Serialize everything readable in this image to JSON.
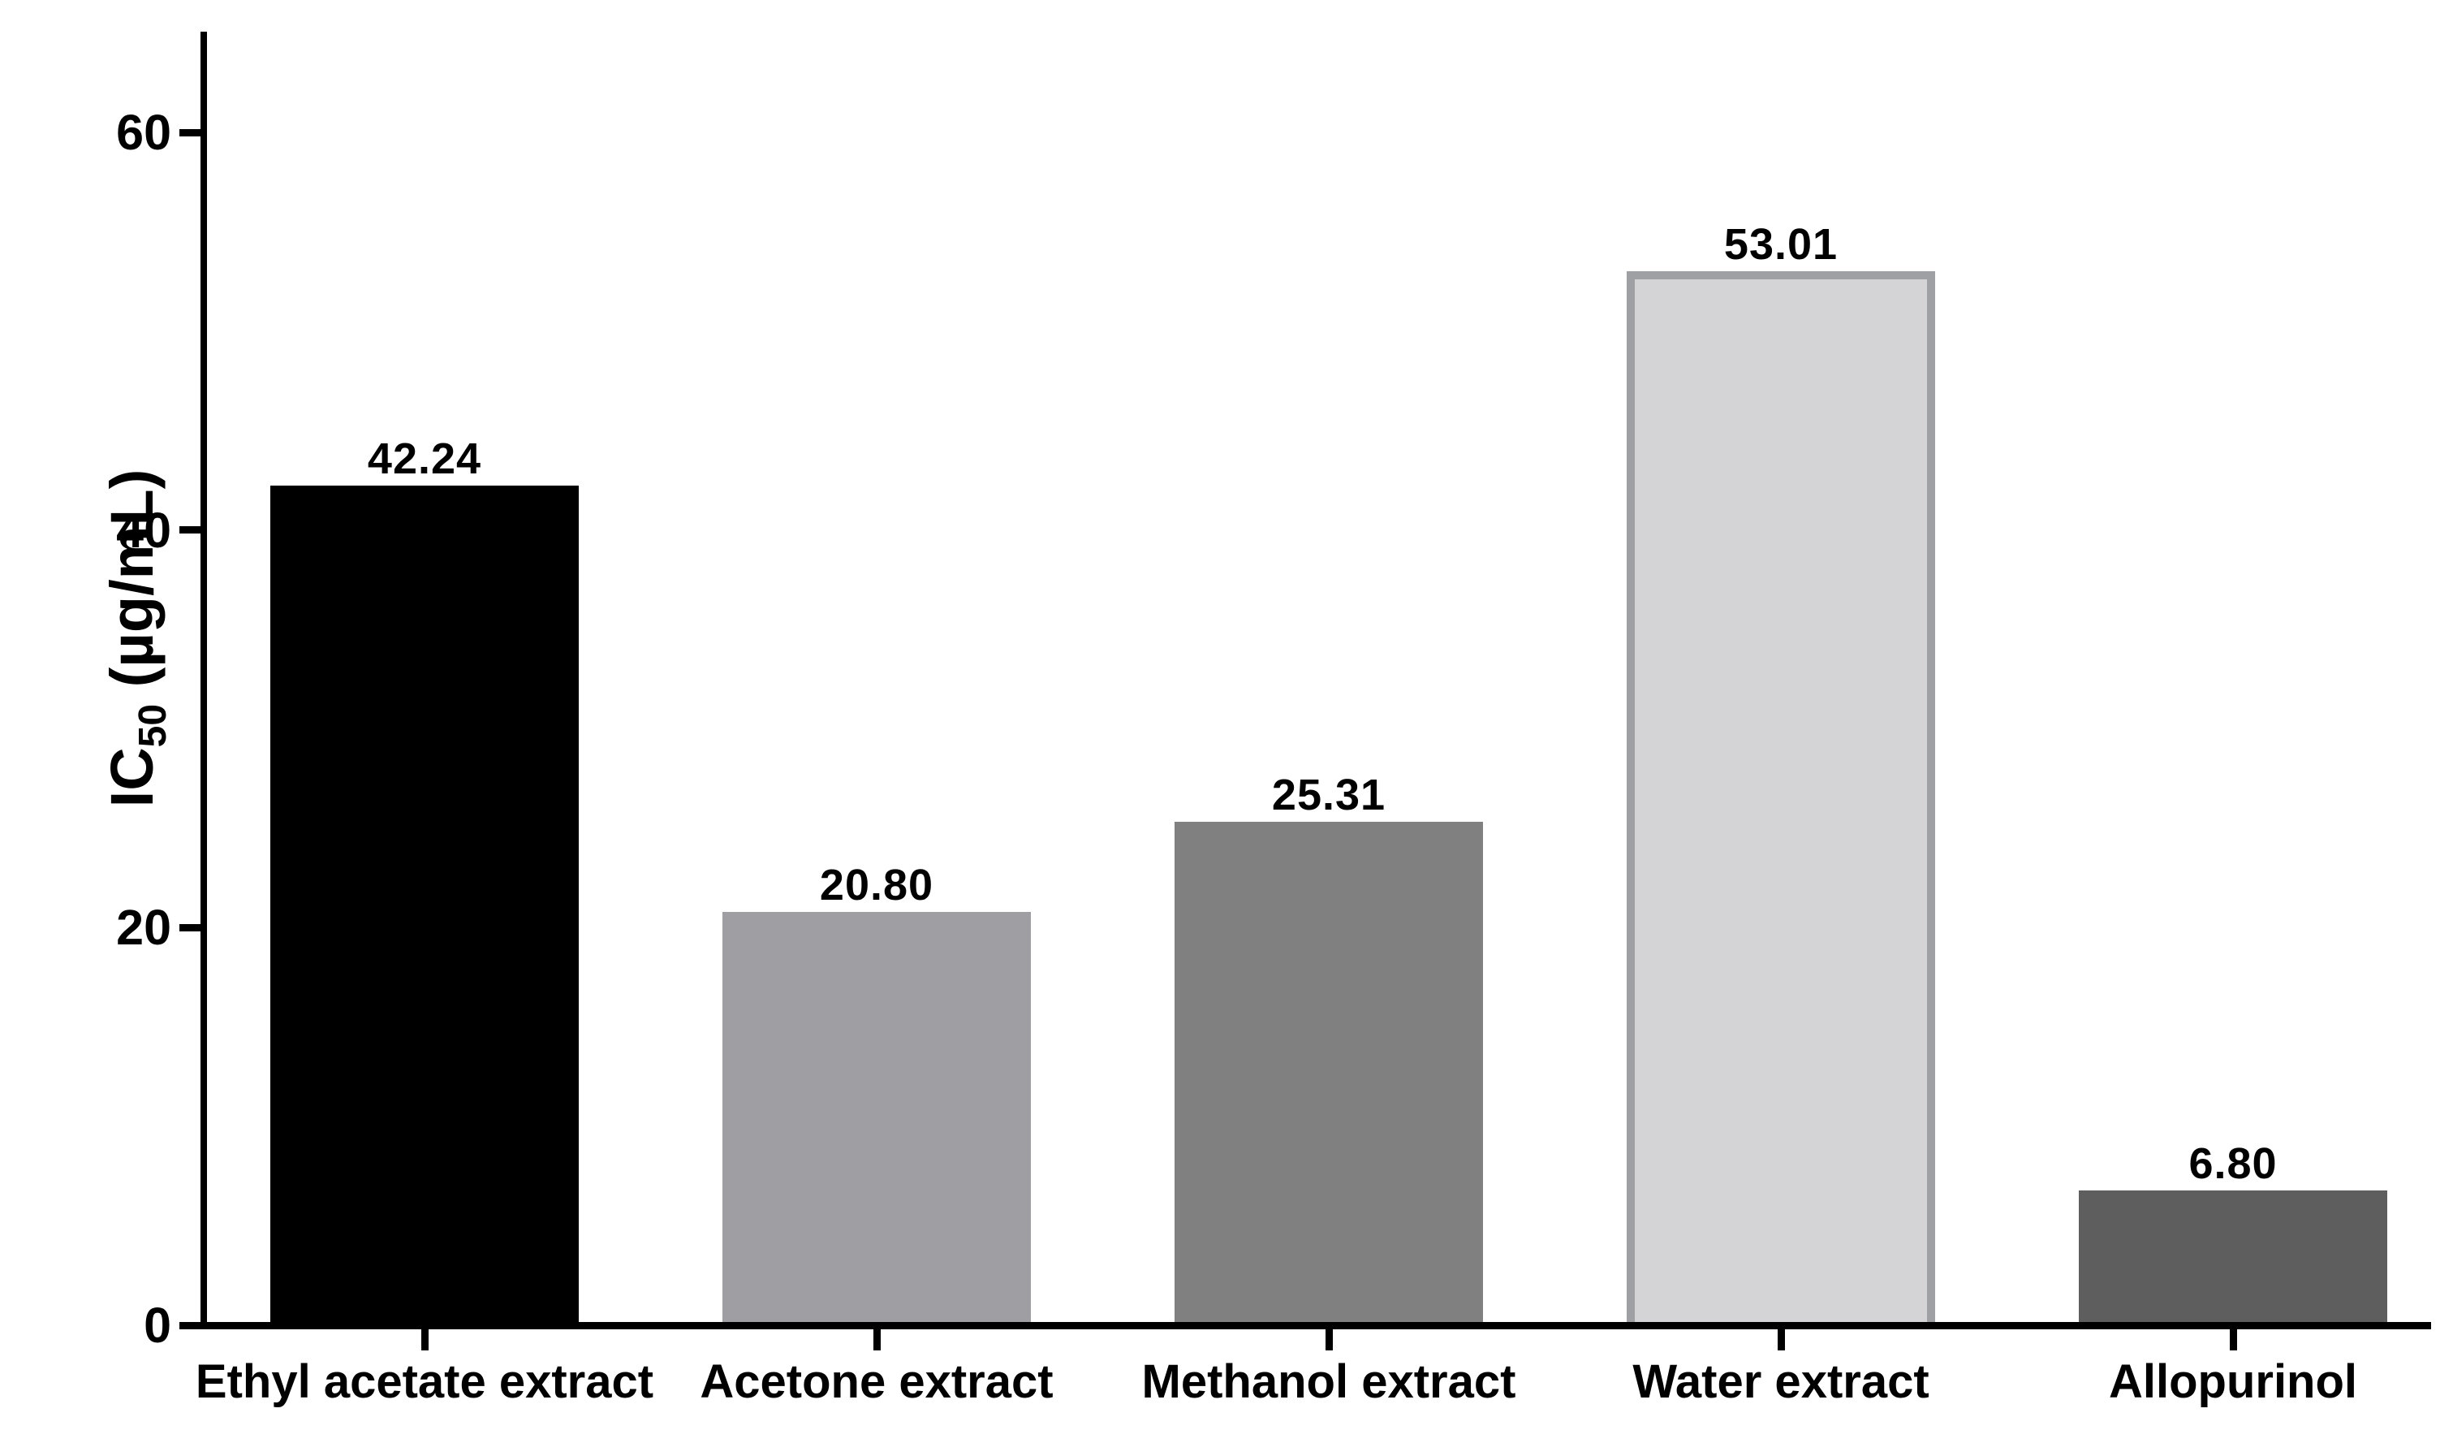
{
  "chart_data": {
    "type": "bar",
    "title": "",
    "ylabel": "IC50 (µg/mL)",
    "ylabel_parts": {
      "base": "IC",
      "subscript": "50",
      "unit": " (µg/mL)"
    },
    "xlabel": "",
    "categories": [
      "Ethyl acetate extract",
      "Acetone extract",
      "Methanol extract",
      "Water extract",
      "Allopurinol"
    ],
    "values": [
      42.24,
      20.8,
      25.31,
      53.01,
      6.8
    ],
    "value_labels": [
      "42.24",
      "20.80",
      "25.31",
      "53.01",
      "6.80"
    ],
    "yticks": [
      0,
      20,
      40,
      60
    ],
    "ylim": [
      0,
      65
    ],
    "grid": false,
    "legend": "none",
    "background": "#FFFFFF",
    "axis_color": "#000000",
    "text_color": "#000000",
    "bar_styles": [
      {
        "fill": "#000000"
      },
      {
        "fill": "#9E9EA3"
      },
      {
        "fill": "#808080"
      },
      {
        "fill": "#D4D4D6",
        "border": "#9FA0A4",
        "border_px": 10
      },
      {
        "fill": "#5E5E5E"
      }
    ]
  }
}
